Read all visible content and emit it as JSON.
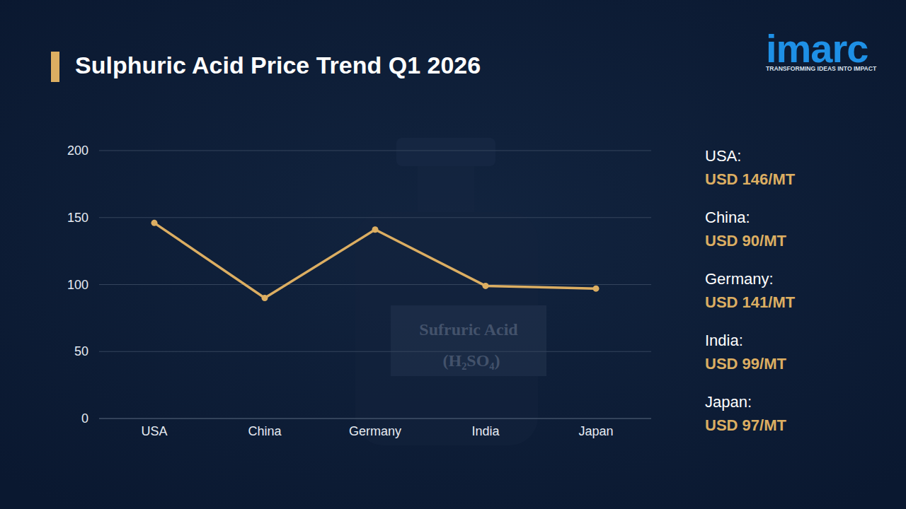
{
  "chart_data": {
    "type": "line",
    "title": "Sulphuric Acid Price Trend Q1 2026",
    "categories": [
      "USA",
      "China",
      "Germany",
      "India",
      "Japan"
    ],
    "values": [
      146,
      90,
      141,
      99,
      97
    ],
    "value_names": [
      "USA:",
      "China:",
      "Germany:",
      "India:",
      "Japan:"
    ],
    "value_labels": [
      "USD 146/MT",
      "USD 90/MT",
      "USD 141/MT",
      "USD 99/MT",
      "USD 97/MT"
    ],
    "color": "#dcae62",
    "marker": "circle",
    "ylim": [
      0,
      200
    ],
    "yticks": [
      0,
      50,
      100,
      150,
      200
    ],
    "grid": true,
    "logo": {
      "text": "imarc",
      "tagline": "TRANSFORMING IDEAS INTO IMPACT"
    },
    "watermark": [
      "Sufruric Acid",
      "(H₂SO₄)"
    ]
  }
}
